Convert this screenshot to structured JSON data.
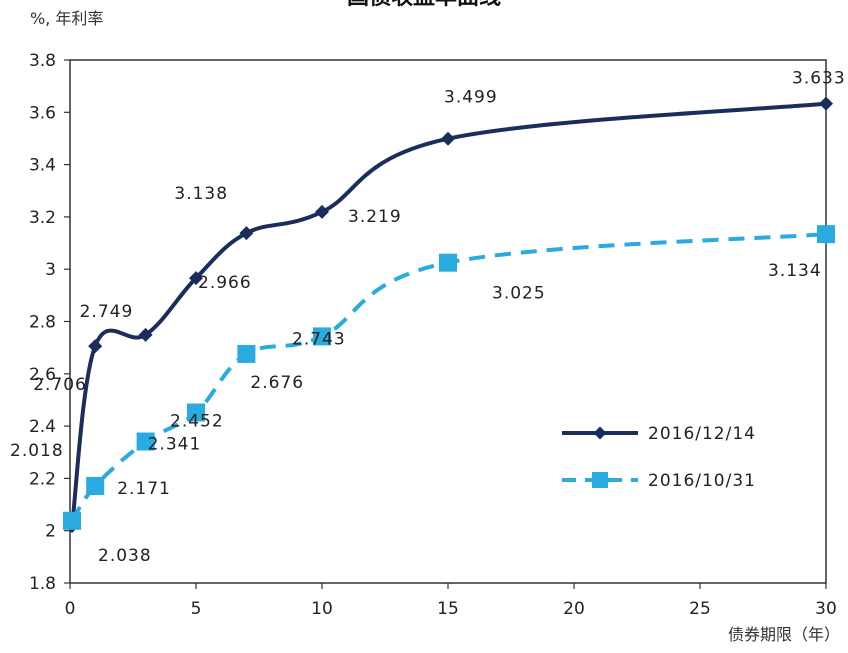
{
  "chart_data": {
    "type": "line",
    "title": "国债收益率曲线",
    "ylabel": "%, 年利率",
    "xlabel": "债券期限（年）",
    "xlim": [
      0,
      30
    ],
    "ylim": [
      1.8,
      3.8
    ],
    "xticks": [
      0,
      5,
      10,
      15,
      20,
      25,
      30
    ],
    "yticks": [
      1.8,
      2,
      2.2,
      2.4,
      2.6,
      2.8,
      3,
      3.2,
      3.4,
      3.6,
      3.8
    ],
    "legend_position": "right",
    "grid": false,
    "series": [
      {
        "name": "2016/12/14",
        "color": "#1b2d5c",
        "style": "solid",
        "marker": "diamond",
        "x": [
          0.08,
          1,
          3,
          5,
          7,
          10,
          15,
          30
        ],
        "values": [
          2.018,
          2.706,
          2.749,
          2.966,
          3.138,
          3.219,
          3.499,
          3.633
        ],
        "labels": [
          "2.018",
          "2.706",
          "2.749",
          "2.966",
          "3.138",
          "3.219",
          "3.499",
          "3.633"
        ]
      },
      {
        "name": "2016/10/31",
        "color": "#29abe2",
        "style": "dashed",
        "marker": "square",
        "x": [
          0.08,
          1,
          3,
          5,
          7,
          10,
          15,
          30
        ],
        "values": [
          2.038,
          2.171,
          2.341,
          2.452,
          2.676,
          2.743,
          3.025,
          3.134
        ],
        "labels": [
          "2.038",
          "2.171",
          "2.341",
          "2.452",
          "2.676",
          "2.743",
          "3.025",
          "3.134"
        ]
      }
    ]
  }
}
